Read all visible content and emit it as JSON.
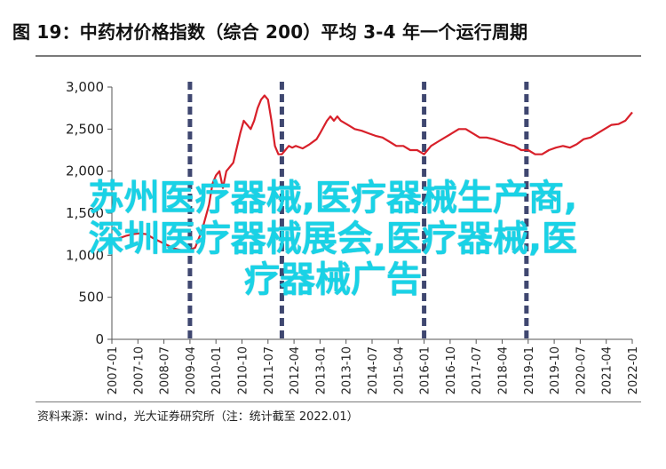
{
  "title": "图 19：中药材价格指数（综合 200）平均 3-4 年一个运行周期",
  "source": "资料来源：wind，光大证券研究所（注：统计截至 2022.01）",
  "overlay_lines": [
    "苏州医疗器械,医疗器械生产商,",
    "深圳医疗器械展会,医疗器械,医",
    "疗器械广告"
  ],
  "colors": {
    "line": "#d8202a",
    "divider": "#3f4770",
    "axis": "#555555",
    "overlay": "#19d2e6"
  },
  "chart_data": {
    "type": "line",
    "title": "图 19：中药材价格指数（综合 200）平均 3-4 年一个运行周期",
    "xlabel": "",
    "ylabel": "",
    "ylim": [
      0,
      3000
    ],
    "yticks": [
      0,
      500,
      1000,
      1500,
      2000,
      2500,
      3000
    ],
    "ytick_labels": [
      "0",
      "500",
      "1,000",
      "1,500",
      "2,000",
      "2,500",
      "3,000"
    ],
    "xlim": [
      2007.0,
      2022.0
    ],
    "xtick_labels": [
      "2007-01",
      "2007-10",
      "2008-07",
      "2009-04",
      "2010-01",
      "2010-10",
      "2011-07",
      "2012-04",
      "2013-01",
      "2013-10",
      "2014-07",
      "2015-04",
      "2016-01",
      "2016-10",
      "2017-07",
      "2018-04",
      "2019-01",
      "2019-10",
      "2020-07",
      "2021-04",
      "2022-01"
    ],
    "cycle_dividers": [
      2009.25,
      2011.9,
      2016.0,
      2018.95
    ],
    "series": [
      {
        "x": [
          2007.0,
          2007.2,
          2007.4,
          2007.6,
          2007.8,
          2008.0,
          2008.2,
          2008.4,
          2008.6,
          2008.8,
          2009.0,
          2009.2,
          2009.4,
          2009.6,
          2009.8,
          2009.9,
          2010.0,
          2010.1,
          2010.2,
          2010.3,
          2010.5,
          2010.7,
          2010.8,
          2010.9,
          2011.0,
          2011.1,
          2011.2,
          2011.3,
          2011.4,
          2011.5,
          2011.6,
          2011.7,
          2011.8,
          2011.9,
          2012.0,
          2012.1,
          2012.2,
          2012.3,
          2012.5,
          2012.7,
          2012.9,
          2013.0,
          2013.2,
          2013.3,
          2013.4,
          2013.5,
          2013.6,
          2013.8,
          2014.0,
          2014.2,
          2014.4,
          2014.6,
          2014.8,
          2015.0,
          2015.2,
          2015.4,
          2015.6,
          2015.8,
          2016.0,
          2016.2,
          2016.4,
          2016.6,
          2016.8,
          2017.0,
          2017.2,
          2017.4,
          2017.6,
          2017.8,
          2018.0,
          2018.2,
          2018.4,
          2018.6,
          2018.8,
          2019.0,
          2019.2,
          2019.4,
          2019.6,
          2019.8,
          2020.0,
          2020.2,
          2020.4,
          2020.6,
          2020.8,
          2021.0,
          2021.2,
          2021.4,
          2021.6,
          2021.8,
          2022.0
        ],
        "values": [
          1180,
          1200,
          1230,
          1250,
          1260,
          1250,
          1200,
          1160,
          1120,
          1080,
          1060,
          1050,
          1090,
          1300,
          1600,
          1850,
          1950,
          2000,
          1800,
          2000,
          2100,
          2450,
          2600,
          2550,
          2500,
          2600,
          2750,
          2850,
          2900,
          2850,
          2600,
          2300,
          2200,
          2200,
          2250,
          2300,
          2280,
          2300,
          2270,
          2320,
          2380,
          2450,
          2600,
          2650,
          2600,
          2650,
          2600,
          2550,
          2500,
          2480,
          2450,
          2420,
          2400,
          2350,
          2300,
          2300,
          2250,
          2250,
          2200,
          2300,
          2350,
          2400,
          2450,
          2500,
          2500,
          2450,
          2400,
          2400,
          2380,
          2350,
          2320,
          2300,
          2250,
          2250,
          2200,
          2200,
          2250,
          2280,
          2300,
          2280,
          2320,
          2380,
          2400,
          2450,
          2500,
          2550,
          2560,
          2600,
          2700
        ]
      }
    ]
  }
}
